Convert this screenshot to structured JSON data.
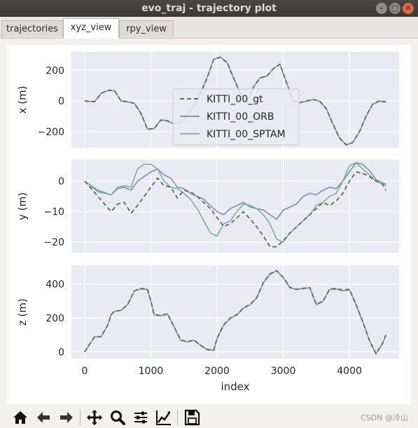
{
  "window": {
    "title": "evo_traj - trajectory plot"
  },
  "tabs": [
    {
      "label": "trajectories",
      "active": false
    },
    {
      "label": "xyz_view",
      "active": true
    },
    {
      "label": "rpy_view",
      "active": false
    }
  ],
  "watermark": "CSDN @冷山",
  "toolbar": [
    "home-icon",
    "back-arrow-icon",
    "forward-arrow-icon",
    "pan-icon",
    "zoom-icon",
    "subplots-config-icon",
    "edit-axis-icon",
    "save-icon"
  ],
  "colors": {
    "gt": "#666666",
    "orb": "#6f8fc7",
    "sptam": "#6fb985",
    "axes_bg": "#eaeaf2"
  },
  "chart_data": {
    "type": "line",
    "xlabel": "index",
    "xlim": [
      -200,
      4750
    ],
    "x_ticks": [
      0,
      1000,
      2000,
      3000,
      4000
    ],
    "x_tick_labels": [
      "0",
      "1000",
      "2000",
      "3000",
      "4000"
    ],
    "legend": {
      "placement": "top-panel-center",
      "entries": [
        {
          "name": "KITTI_00_gt",
          "style": "dashed"
        },
        {
          "name": "KITTI_00_ORB",
          "style": "solid"
        },
        {
          "name": "KITTI_00_SPTAM",
          "style": "solid"
        }
      ]
    },
    "panels": [
      {
        "ylabel": "x (m)",
        "ylim": [
          -305,
          320
        ],
        "y_ticks": [
          200,
          0,
          -200
        ],
        "y_tick_labels": [
          "200",
          "0",
          "−200"
        ],
        "series": [
          {
            "name": "KITTI_00_gt",
            "x": [
              0,
              150,
              250,
              350,
              450,
              550,
              650,
              750,
              850,
              950,
              1050,
              1150,
              1250,
              1350,
              1450,
              1550,
              1650,
              1750,
              1850,
              1950,
              2050,
              2150,
              2250,
              2350,
              2450,
              2550,
              2650,
              2750,
              2850,
              2950,
              3050,
              3150,
              3250,
              3350,
              3450,
              3550,
              3650,
              3750,
              3850,
              3950,
              4050,
              4150,
              4250,
              4350,
              4450,
              4550
            ],
            "y": [
              0,
              -5,
              50,
              70,
              68,
              0,
              -5,
              -15,
              -80,
              -185,
              -180,
              -125,
              -130,
              -150,
              -140,
              -90,
              -30,
              50,
              150,
              270,
              285,
              250,
              150,
              50,
              -5,
              90,
              150,
              160,
              210,
              240,
              120,
              0,
              -10,
              0,
              10,
              0,
              -50,
              -150,
              -240,
              -285,
              -270,
              -200,
              -100,
              -20,
              0,
              -5
            ]
          },
          {
            "name": "KITTI_00_ORB",
            "x": [
              0,
              150,
              250,
              350,
              450,
              550,
              650,
              750,
              850,
              950,
              1050,
              1150,
              1250,
              1350,
              1450,
              1550,
              1650,
              1750,
              1850,
              1950,
              2050,
              2150,
              2250,
              2350,
              2450,
              2550,
              2650,
              2750,
              2850,
              2950,
              3050,
              3150,
              3250,
              3350,
              3450,
              3550,
              3650,
              3750,
              3850,
              3950,
              4050,
              4150,
              4250,
              4350,
              4450,
              4550
            ],
            "y": [
              0,
              -5,
              50,
              68,
              66,
              0,
              -5,
              -15,
              -80,
              -182,
              -178,
              -123,
              -128,
              -148,
              -138,
              -88,
              -28,
              52,
              152,
              272,
              287,
              252,
              152,
              52,
              -3,
              92,
              152,
              162,
              212,
              238,
              118,
              -2,
              -12,
              -2,
              8,
              -2,
              -52,
              -152,
              -242,
              -287,
              -272,
              -202,
              -102,
              -22,
              -2,
              -7
            ]
          },
          {
            "name": "KITTI_00_SPTAM",
            "x": [
              0,
              150,
              250,
              350,
              450,
              550,
              650,
              750,
              850,
              950,
              1050,
              1150,
              1250,
              1350,
              1450,
              1550,
              1650,
              1750,
              1850,
              1950,
              2050,
              2150,
              2250,
              2350,
              2450,
              2550,
              2650,
              2750,
              2850,
              2950,
              3050,
              3150,
              3250,
              3350,
              3450,
              3550,
              3650,
              3750,
              3850,
              3950,
              4050,
              4150,
              4250,
              4350,
              4450,
              4550
            ],
            "y": [
              0,
              -6,
              49,
              69,
              67,
              -1,
              -6,
              -16,
              -81,
              -184,
              -179,
              -124,
              -129,
              -149,
              -139,
              -89,
              -29,
              51,
              151,
              271,
              286,
              251,
              151,
              51,
              -4,
              91,
              151,
              161,
              211,
              239,
              119,
              -1,
              -11,
              -1,
              9,
              -1,
              -51,
              -151,
              -241,
              -286,
              -271,
              -201,
              -101,
              -21,
              -1,
              -6
            ]
          }
        ]
      },
      {
        "ylabel": "y (m)",
        "ylim": [
          -23.5,
          7
        ],
        "y_ticks": [
          0,
          -10,
          -20
        ],
        "y_tick_labels": [
          "0",
          "−10",
          "−20"
        ],
        "series": [
          {
            "name": "KITTI_00_gt",
            "x": [
              0,
              200,
              400,
              500,
              600,
              700,
              800,
              900,
              1000,
              1100,
              1200,
              1300,
              1400,
              1500,
              1600,
              1700,
              1800,
              1900,
              2000,
              2100,
              2200,
              2300,
              2400,
              2500,
              2600,
              2700,
              2800,
              2900,
              3000,
              3100,
              3200,
              3300,
              3400,
              3500,
              3600,
              3700,
              3800,
              3900,
              4000,
              4100,
              4200,
              4300,
              4400,
              4500,
              4550
            ],
            "y": [
              0,
              -5,
              -10,
              -7.5,
              -7,
              -10.5,
              -8,
              -5,
              -2,
              1,
              -1.5,
              -2,
              -5.5,
              -3,
              -3.5,
              -5,
              -7,
              -9,
              -12,
              -14.8,
              -14,
              -12,
              -10,
              -12.5,
              -15,
              -18,
              -21.5,
              -21.5,
              -19.5,
              -17,
              -15,
              -13,
              -11,
              -9,
              -7,
              -8,
              -6.5,
              -4,
              0,
              3,
              2.5,
              1.5,
              0,
              -1,
              -3
            ]
          },
          {
            "name": "KITTI_00_ORB",
            "x": [
              0,
              200,
              400,
              500,
              600,
              700,
              800,
              900,
              1000,
              1100,
              1200,
              1300,
              1400,
              1500,
              1600,
              1700,
              1800,
              1900,
              2000,
              2100,
              2200,
              2300,
              2400,
              2500,
              2600,
              2700,
              2800,
              2900,
              3000,
              3100,
              3200,
              3300,
              3400,
              3500,
              3600,
              3700,
              3800,
              3900,
              4000,
              4100,
              4200,
              4300,
              4400,
              4500,
              4550
            ],
            "y": [
              0,
              -3,
              -4.5,
              -2.5,
              -2,
              -3,
              0,
              1.5,
              3,
              4,
              2,
              1,
              -2,
              -2.5,
              -4,
              -5,
              -6,
              -8,
              -10,
              -11,
              -9,
              -8,
              -7,
              -8.5,
              -9,
              -9.5,
              -11,
              -12.5,
              -9.5,
              -8.5,
              -7.5,
              -5,
              -4,
              -4.5,
              -3,
              -2,
              -2.5,
              0,
              3,
              6,
              5.5,
              3.5,
              0.5,
              -0.5,
              -1
            ]
          },
          {
            "name": "KITTI_00_SPTAM",
            "x": [
              0,
              200,
              400,
              500,
              600,
              700,
              800,
              900,
              1000,
              1100,
              1200,
              1300,
              1400,
              1500,
              1600,
              1700,
              1800,
              1900,
              2000,
              2100,
              2200,
              2300,
              2400,
              2500,
              2600,
              2700,
              2800,
              2900,
              3000,
              3100,
              3200,
              3300,
              3400,
              3500,
              3600,
              3700,
              3800,
              3900,
              4000,
              4100,
              4200,
              4300,
              4400,
              4500,
              4550
            ],
            "y": [
              0,
              -3.5,
              -4.5,
              -2,
              -1.5,
              -2,
              4,
              5.5,
              5.5,
              4,
              0,
              -2,
              -2.5,
              -4,
              -6,
              -9,
              -13,
              -17,
              -18,
              -14,
              -13,
              -10,
              -7.5,
              -8,
              -9,
              -11,
              -14,
              -19,
              -20,
              -17,
              -15,
              -13,
              -11,
              -8,
              -7,
              -5,
              -4,
              0,
              5,
              6,
              4,
              2,
              0,
              -1,
              -1.5
            ]
          }
        ]
      },
      {
        "ylabel": "z (m)",
        "ylim": [
          -40,
          510
        ],
        "y_ticks": [
          400,
          200,
          0
        ],
        "y_tick_labels": [
          "400",
          "200",
          "0"
        ],
        "series": [
          {
            "name": "KITTI_00_gt",
            "x": [
              0,
              50,
              150,
              250,
              350,
              400,
              450,
              550,
              650,
              750,
              850,
              950,
              1000,
              1050,
              1150,
              1250,
              1350,
              1450,
              1550,
              1650,
              1750,
              1850,
              1950,
              2000,
              2100,
              2200,
              2300,
              2400,
              2500,
              2600,
              2700,
              2800,
              2900,
              3000,
              3100,
              3200,
              3300,
              3400,
              3500,
              3600,
              3700,
              3800,
              3900,
              4000,
              4100,
              4200,
              4300,
              4400,
              4500,
              4550
            ],
            "y": [
              0,
              30,
              90,
              90,
              160,
              220,
              240,
              245,
              280,
              360,
              375,
              370,
              300,
              220,
              215,
              225,
              150,
              70,
              60,
              70,
              40,
              15,
              10,
              80,
              160,
              200,
              220,
              260,
              280,
              320,
              410,
              460,
              480,
              440,
              380,
              370,
              375,
              380,
              280,
              300,
              370,
              375,
              365,
              370,
              280,
              180,
              70,
              -10,
              50,
              100
            ]
          },
          {
            "name": "KITTI_00_ORB",
            "x": [
              0,
              50,
              150,
              250,
              350,
              400,
              450,
              550,
              650,
              750,
              850,
              950,
              1000,
              1050,
              1150,
              1250,
              1350,
              1450,
              1550,
              1650,
              1750,
              1850,
              1950,
              2000,
              2100,
              2200,
              2300,
              2400,
              2500,
              2600,
              2700,
              2800,
              2900,
              3000,
              3100,
              3200,
              3300,
              3400,
              3500,
              3600,
              3700,
              3800,
              3900,
              4000,
              4100,
              4200,
              4300,
              4400,
              4500,
              4550
            ],
            "y": [
              0,
              29,
              89,
              89,
              159,
              219,
              239,
              244,
              279,
              359,
              372,
              368,
              298,
              218,
              213,
              223,
              148,
              68,
              58,
              68,
              38,
              13,
              8,
              78,
              158,
              198,
              218,
              258,
              278,
              318,
              408,
              458,
              478,
              438,
              378,
              368,
              373,
              378,
              278,
              298,
              368,
              370,
              360,
              366,
              278,
              178,
              68,
              -12,
              48,
              98
            ]
          },
          {
            "name": "KITTI_00_SPTAM",
            "x": [
              0,
              50,
              150,
              250,
              350,
              400,
              450,
              550,
              650,
              750,
              850,
              950,
              1000,
              1050,
              1150,
              1250,
              1350,
              1450,
              1550,
              1650,
              1750,
              1850,
              1950,
              2000,
              2100,
              2200,
              2300,
              2400,
              2500,
              2600,
              2700,
              2800,
              2900,
              3000,
              3100,
              3200,
              3300,
              3400,
              3500,
              3600,
              3700,
              3800,
              3900,
              4000,
              4100,
              4200,
              4300,
              4400,
              4500,
              4550
            ],
            "y": [
              0,
              30,
              90,
              90,
              160,
              220,
              240,
              245,
              280,
              360,
              373,
              369,
              299,
              219,
              214,
              224,
              149,
              69,
              59,
              69,
              39,
              14,
              9,
              79,
              159,
              199,
              219,
              259,
              279,
              319,
              409,
              459,
              479,
              439,
              379,
              369,
              374,
              379,
              279,
              299,
              369,
              371,
              361,
              367,
              279,
              179,
              69,
              -11,
              49,
              99
            ]
          }
        ]
      }
    ]
  }
}
